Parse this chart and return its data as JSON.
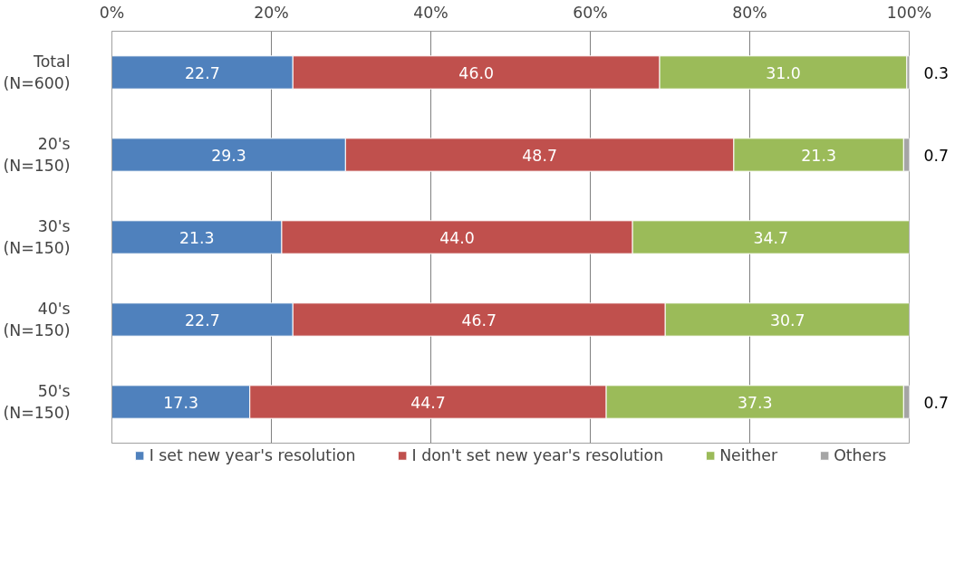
{
  "chart_data": {
    "type": "bar",
    "orientation": "horizontal",
    "stacked": true,
    "categories": [
      "Total\n(N=600)",
      "20's\n(N=150)",
      "30's\n(N=150)",
      "40's\n(N=150)",
      "50's\n(N=150)"
    ],
    "series": [
      {
        "name": "I set new year's resolution",
        "color": "#4f81bd",
        "values": [
          22.7,
          29.3,
          21.3,
          22.7,
          17.3
        ],
        "value_labels": [
          "22.7",
          "29.3",
          "21.3",
          "22.7",
          "17.3"
        ]
      },
      {
        "name": "I don't set new year's resolution",
        "color": "#c0504d",
        "values": [
          46.0,
          48.7,
          44.0,
          46.7,
          44.7
        ],
        "value_labels": [
          "46.0",
          "48.7",
          "44.0",
          "46.7",
          "44.7"
        ]
      },
      {
        "name": "Neither",
        "color": "#9bbb59",
        "values": [
          31.0,
          21.3,
          34.7,
          30.7,
          37.3
        ],
        "value_labels": [
          "31.0",
          "21.3",
          "34.7",
          "30.7",
          "37.3"
        ]
      },
      {
        "name": "Others",
        "color": "#a5a5a5",
        "values": [
          0.3,
          0.7,
          0,
          0,
          0.7
        ],
        "value_labels": [
          "0.3",
          "0.7",
          null,
          null,
          "0.7"
        ]
      }
    ],
    "xlim": [
      0,
      100
    ],
    "xticks": [
      {
        "value": 0,
        "label": "0%"
      },
      {
        "value": 20,
        "label": "20%"
      },
      {
        "value": 40,
        "label": "40%"
      },
      {
        "value": 60,
        "label": "60%"
      },
      {
        "value": 80,
        "label": "80%"
      },
      {
        "value": 100,
        "label": "100%"
      }
    ],
    "grid": "x",
    "legend": "bottom",
    "data_labels": true
  }
}
